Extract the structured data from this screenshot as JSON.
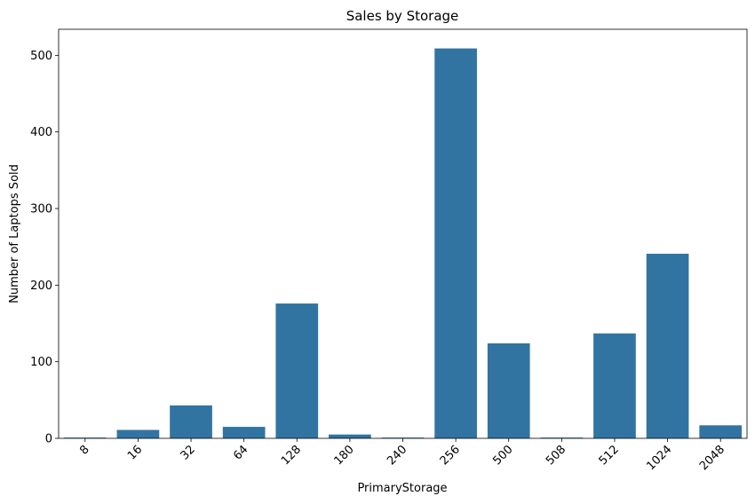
{
  "chart_data": {
    "type": "bar",
    "title": "Sales by Storage",
    "xlabel": "PrimaryStorage",
    "ylabel": "Number of Laptops Sold",
    "categories": [
      "8",
      "16",
      "32",
      "64",
      "128",
      "180",
      "240",
      "256",
      "500",
      "508",
      "512",
      "1024",
      "2048"
    ],
    "values": [
      1,
      11,
      43,
      15,
      176,
      5,
      1,
      509,
      124,
      1,
      137,
      241,
      17
    ],
    "ylim": [
      0,
      534
    ],
    "yticks": [
      0,
      100,
      200,
      300,
      400,
      500
    ],
    "bar_color": "#3274a1",
    "grid": false,
    "legend": "none"
  }
}
